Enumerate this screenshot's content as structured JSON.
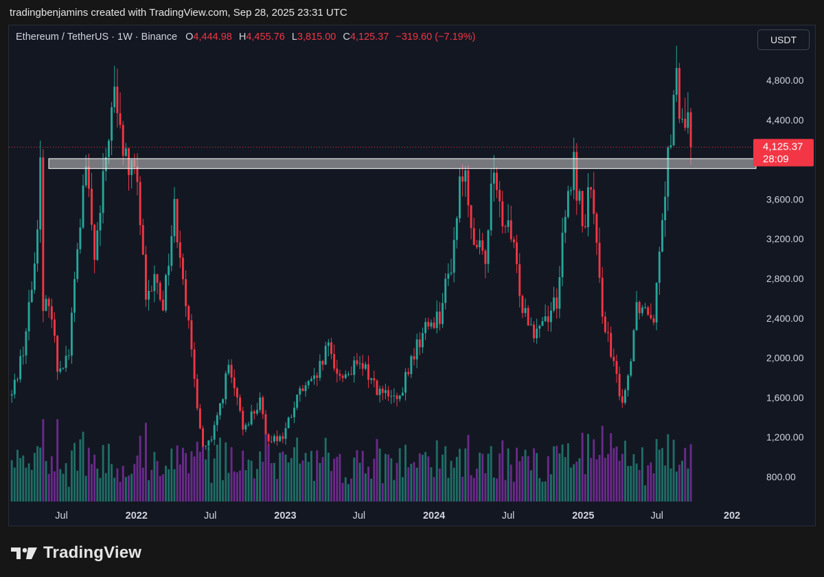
{
  "header": {
    "caption": "tradingbenjamins created with TradingView.com, Sep 28, 2025 23:31 UTC"
  },
  "legend": {
    "symbol": "Ethereum / TetherUS · 1W · Binance",
    "o_label": "O",
    "o_value": "4,444.98",
    "h_label": "H",
    "h_value": "4,455.76",
    "l_label": "L",
    "l_value": "3,815.00",
    "c_label": "C",
    "c_value": "4,125.37",
    "change": "−319.60 (−7.19%)"
  },
  "currency_button": "USDT",
  "brand": {
    "name": "TradingView"
  },
  "colors": {
    "up": "#26a69a",
    "down": "#f23645",
    "volume_up": "#1f6d66",
    "volume_down": "#6a2a8a",
    "zone_fill": "#c8c8c8",
    "price_tag_bg": "#f23645",
    "background": "#131722"
  },
  "chart_data": {
    "type": "candlestick",
    "symbol": "ETHUSDT",
    "interval": "1W",
    "ylim": [
      550,
      5050
    ],
    "y_ticks": [
      "4,800.00",
      "4,400.00",
      "3,600.00",
      "3,200.00",
      "2,800.00",
      "2,400.00",
      "2,000.00",
      "1,600.00",
      "1,200.00",
      "800.00"
    ],
    "y_tick_values": [
      4800,
      4400,
      3600,
      3200,
      2800,
      2400,
      2000,
      1600,
      1200,
      800
    ],
    "x_ticks": [
      {
        "label": "Jul",
        "date": "2021-07-01",
        "bold": false
      },
      {
        "label": "2022",
        "date": "2022-01-01",
        "bold": true
      },
      {
        "label": "Jul",
        "date": "2022-07-01",
        "bold": false
      },
      {
        "label": "2023",
        "date": "2023-01-01",
        "bold": true
      },
      {
        "label": "Jul",
        "date": "2023-07-01",
        "bold": false
      },
      {
        "label": "2024",
        "date": "2024-01-01",
        "bold": true
      },
      {
        "label": "Jul",
        "date": "2024-07-01",
        "bold": false
      },
      {
        "label": "2025",
        "date": "2025-01-01",
        "bold": true
      },
      {
        "label": "Jul",
        "date": "2025-07-01",
        "bold": false
      },
      {
        "label": "202",
        "date": "2026-01-01",
        "bold": true
      }
    ],
    "x_range": [
      "2021-02-22",
      "2026-03-01"
    ],
    "last_price_label": "4,125.37",
    "last_price": 4125.37,
    "countdown_label": "28:09",
    "resistance_zone": [
      3910,
      4010
    ],
    "grid": false,
    "series": [
      {
        "date": "2021-03-01",
        "close": 1620
      },
      {
        "date": "2021-04-01",
        "close": 2150
      },
      {
        "date": "2021-04-26",
        "close": 2950
      },
      {
        "date": "2021-05-10",
        "close": 3950
      },
      {
        "date": "2021-05-17",
        "close": 2400
      },
      {
        "date": "2021-06-01",
        "close": 2650
      },
      {
        "date": "2021-06-21",
        "close": 1900
      },
      {
        "date": "2021-07-19",
        "close": 2050
      },
      {
        "date": "2021-08-09",
        "close": 3100
      },
      {
        "date": "2021-08-30",
        "close": 3900
      },
      {
        "date": "2021-09-20",
        "close": 3000
      },
      {
        "date": "2021-10-04",
        "close": 3450
      },
      {
        "date": "2021-10-25",
        "close": 4300
      },
      {
        "date": "2021-11-08",
        "close": 4650
      },
      {
        "date": "2021-11-22",
        "close": 4250
      },
      {
        "date": "2021-12-13",
        "close": 3900
      },
      {
        "date": "2022-01-03",
        "close": 3800
      },
      {
        "date": "2022-01-24",
        "close": 2500
      },
      {
        "date": "2022-02-14",
        "close": 2800
      },
      {
        "date": "2022-03-07",
        "close": 2550
      },
      {
        "date": "2022-04-04",
        "close": 3500
      },
      {
        "date": "2022-04-25",
        "close": 2900
      },
      {
        "date": "2022-05-16",
        "close": 2000
      },
      {
        "date": "2022-06-13",
        "close": 1100
      },
      {
        "date": "2022-07-04",
        "close": 1150
      },
      {
        "date": "2022-08-01",
        "close": 1650
      },
      {
        "date": "2022-08-15",
        "close": 1900
      },
      {
        "date": "2022-09-19",
        "close": 1300
      },
      {
        "date": "2022-10-31",
        "close": 1550
      },
      {
        "date": "2022-11-14",
        "close": 1200
      },
      {
        "date": "2022-12-26",
        "close": 1200
      },
      {
        "date": "2023-02-06",
        "close": 1650
      },
      {
        "date": "2023-03-13",
        "close": 1750
      },
      {
        "date": "2023-04-17",
        "close": 2100
      },
      {
        "date": "2023-05-15",
        "close": 1800
      },
      {
        "date": "2023-06-19",
        "close": 1900
      },
      {
        "date": "2023-07-17",
        "close": 1880
      },
      {
        "date": "2023-08-21",
        "close": 1650
      },
      {
        "date": "2023-10-09",
        "close": 1550
      },
      {
        "date": "2023-10-23",
        "close": 1800
      },
      {
        "date": "2023-11-13",
        "close": 2050
      },
      {
        "date": "2023-12-11",
        "close": 2300
      },
      {
        "date": "2024-01-15",
        "close": 2450
      },
      {
        "date": "2024-02-12",
        "close": 2950
      },
      {
        "date": "2024-03-11",
        "close": 3950
      },
      {
        "date": "2024-04-15",
        "close": 3100
      },
      {
        "date": "2024-05-06",
        "close": 2950
      },
      {
        "date": "2024-05-20",
        "close": 3850
      },
      {
        "date": "2024-06-17",
        "close": 3400
      },
      {
        "date": "2024-07-08",
        "close": 3200
      },
      {
        "date": "2024-08-05",
        "close": 2550
      },
      {
        "date": "2024-09-02",
        "close": 2300
      },
      {
        "date": "2024-10-07",
        "close": 2450
      },
      {
        "date": "2024-10-28",
        "close": 2600
      },
      {
        "date": "2024-11-18",
        "close": 3400
      },
      {
        "date": "2024-12-09",
        "close": 3950
      },
      {
        "date": "2024-12-30",
        "close": 3350
      },
      {
        "date": "2025-01-20",
        "close": 3700
      },
      {
        "date": "2025-02-10",
        "close": 2700
      },
      {
        "date": "2025-03-10",
        "close": 2000
      },
      {
        "date": "2025-04-07",
        "close": 1570
      },
      {
        "date": "2025-04-21",
        "close": 1800
      },
      {
        "date": "2025-05-12",
        "close": 2550
      },
      {
        "date": "2025-06-09",
        "close": 2500
      },
      {
        "date": "2025-06-23",
        "close": 2450
      },
      {
        "date": "2025-07-14",
        "close": 3500
      },
      {
        "date": "2025-08-04",
        "close": 4300
      },
      {
        "date": "2025-08-18",
        "close": 4750
      },
      {
        "date": "2025-09-01",
        "close": 4300
      },
      {
        "date": "2025-09-15",
        "close": 4450
      },
      {
        "date": "2025-09-22",
        "close": 4125
      }
    ]
  }
}
